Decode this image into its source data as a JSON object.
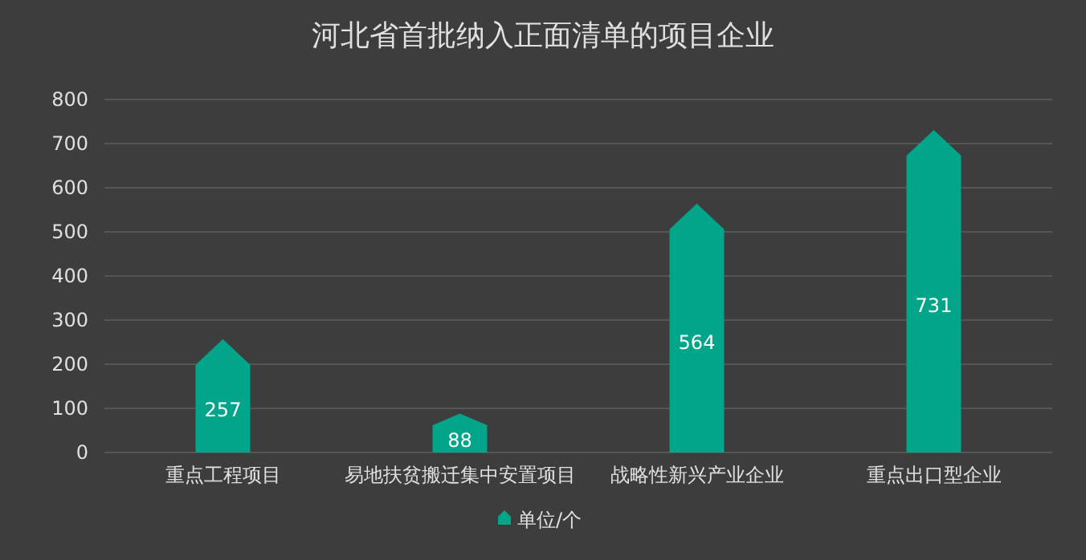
{
  "chart_data": {
    "type": "bar",
    "title": "河北省首批纳入正面清单的项目企业",
    "categories": [
      "重点工程项目",
      "易地扶贫搬迁集中安置项目",
      "战略性新兴产业企业",
      "重点出口型企业"
    ],
    "series": [
      {
        "name": "单位/个",
        "color": "#00a58a",
        "values": [
          257,
          88,
          564,
          731
        ]
      }
    ],
    "ylim": [
      0,
      800
    ],
    "yticks": [
      0,
      100,
      200,
      300,
      400,
      500,
      600,
      700,
      800
    ],
    "grid": "y",
    "legend": "bottom",
    "data_labels": true
  }
}
